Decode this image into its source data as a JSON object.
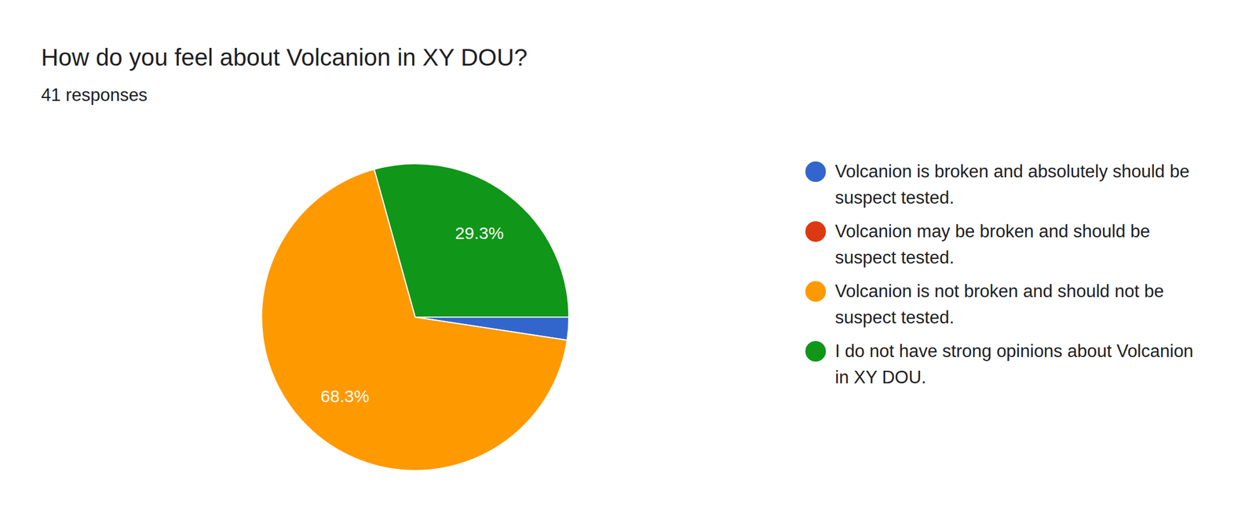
{
  "chart_data": {
    "type": "pie",
    "title": "How do you feel about Volcanion in XY DOU?",
    "subtitle": "41 responses",
    "categories": [
      "Volcanion is broken and absolutely should be suspect tested.",
      "Volcanion may be broken and should be suspect tested.",
      "Volcanion is not broken and should not be suspect tested.",
      "I do not have strong opinions about Volcanion in XY DOU."
    ],
    "values": [
      2.4,
      0,
      68.3,
      29.3
    ],
    "value_labels": [
      null,
      null,
      "68.3%",
      "29.3%"
    ],
    "colors": [
      "#3366cc",
      "#dc3912",
      "#ff9900",
      "#109618"
    ],
    "data_labels": true,
    "legend": "right"
  }
}
